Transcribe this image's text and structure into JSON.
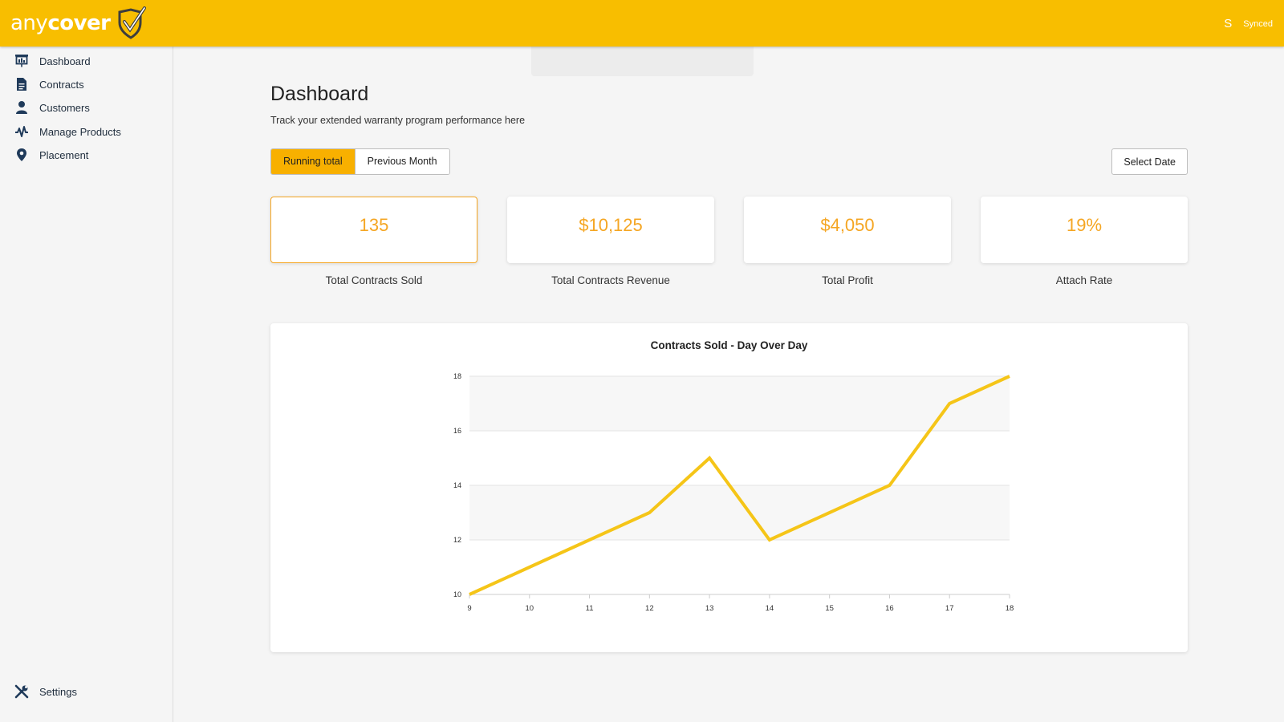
{
  "header": {
    "logo_any": "any",
    "logo_cover": "cover",
    "avatar_initial": "S",
    "sync_status": "Synced"
  },
  "sidebar": {
    "items": [
      {
        "label": "Dashboard",
        "icon": "presentation-chart-icon"
      },
      {
        "label": "Contracts",
        "icon": "document-icon"
      },
      {
        "label": "Customers",
        "icon": "person-icon"
      },
      {
        "label": "Manage Products",
        "icon": "pulse-icon"
      },
      {
        "label": "Placement",
        "icon": "map-pin-icon"
      }
    ],
    "settings": {
      "label": "Settings",
      "icon": "tools-icon"
    }
  },
  "main": {
    "title": "Dashboard",
    "subtitle": "Track your extended warranty program performance here",
    "toggle": {
      "running_total": "Running total",
      "previous_month": "Previous Month",
      "active": "running_total"
    },
    "select_date_label": "Select Date",
    "stats": [
      {
        "value": "135",
        "label": "Total Contracts Sold"
      },
      {
        "value": "$10,125",
        "label": "Total Contracts Revenue"
      },
      {
        "value": "$4,050",
        "label": "Total Profit"
      },
      {
        "value": "19%",
        "label": "Attach Rate"
      }
    ]
  },
  "colors": {
    "brand": "#f8be00",
    "accent": "#f5a623",
    "line": "#f5c518",
    "nav_icon": "#1f3a5a"
  },
  "chart_data": {
    "type": "line",
    "title": "Contracts Sold - Day Over Day",
    "x": [
      9,
      10,
      11,
      12,
      13,
      14,
      15,
      16,
      17,
      18
    ],
    "series": [
      {
        "values": [
          10,
          11,
          12,
          13,
          15,
          12,
          13,
          14,
          17,
          18
        ]
      }
    ],
    "xlabel": "",
    "ylabel": "",
    "xlim": [
      9,
      18
    ],
    "ylim": [
      10,
      18
    ],
    "yticks": [
      10,
      12,
      14,
      16,
      18
    ],
    "xticks": [
      9,
      10,
      11,
      12,
      13,
      14,
      15,
      16,
      17,
      18
    ],
    "grid": true,
    "legend": "none"
  }
}
